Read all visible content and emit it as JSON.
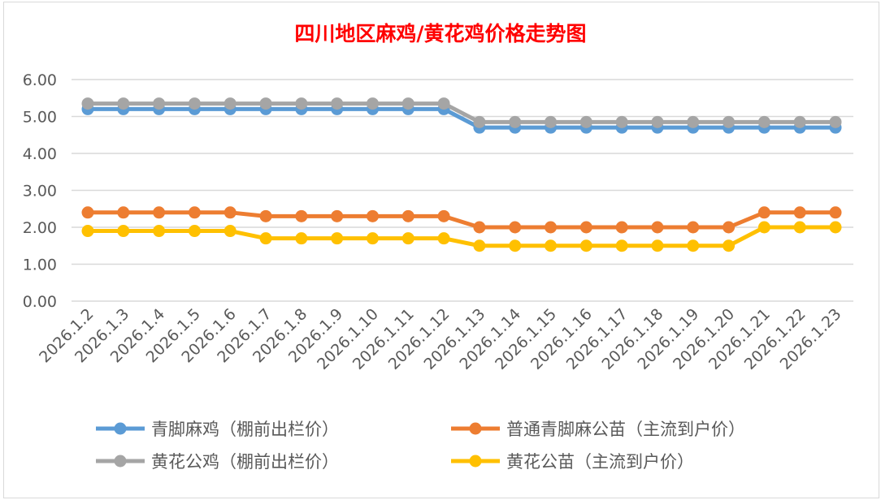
{
  "chart_data": {
    "type": "line",
    "title": "四川地区麻鸡/黄花鸡价格走势图",
    "xlabel": "",
    "ylabel": "",
    "ylim": [
      0,
      6
    ],
    "yticks": [
      "0.00",
      "1.00",
      "2.00",
      "3.00",
      "4.00",
      "5.00",
      "6.00"
    ],
    "grid": true,
    "legend_position": "bottom",
    "categories": [
      "2026.1.2",
      "2026.1.3",
      "2026.1.4",
      "2026.1.5",
      "2026.1.6",
      "2026.1.7",
      "2026.1.8",
      "2026.1.9",
      "2026.1.10",
      "2026.1.11",
      "2026.1.12",
      "2026.1.13",
      "2026.1.14",
      "2026.1.15",
      "2026.1.16",
      "2026.1.17",
      "2026.1.18",
      "2026.1.19",
      "2026.1.20",
      "2026.1.21",
      "2026.1.22",
      "2026.1.23"
    ],
    "series": [
      {
        "name": "青脚麻鸡（棚前出栏价）",
        "color": "#5b9bd5",
        "values": [
          5.2,
          5.2,
          5.2,
          5.2,
          5.2,
          5.2,
          5.2,
          5.2,
          5.2,
          5.2,
          5.2,
          4.7,
          4.7,
          4.7,
          4.7,
          4.7,
          4.7,
          4.7,
          4.7,
          4.7,
          4.7,
          4.7
        ]
      },
      {
        "name": "普通青脚麻公苗（主流到户价）",
        "color": "#ed7d31",
        "values": [
          2.4,
          2.4,
          2.4,
          2.4,
          2.4,
          2.3,
          2.3,
          2.3,
          2.3,
          2.3,
          2.3,
          2.0,
          2.0,
          2.0,
          2.0,
          2.0,
          2.0,
          2.0,
          2.0,
          2.4,
          2.4,
          2.4
        ]
      },
      {
        "name": "黄花公鸡（棚前出栏价）",
        "color": "#a5a5a5",
        "values": [
          5.35,
          5.35,
          5.35,
          5.35,
          5.35,
          5.35,
          5.35,
          5.35,
          5.35,
          5.35,
          5.35,
          4.85,
          4.85,
          4.85,
          4.85,
          4.85,
          4.85,
          4.85,
          4.85,
          4.85,
          4.85,
          4.85
        ]
      },
      {
        "name": "黄花公苗（主流到户价）",
        "color": "#ffc000",
        "values": [
          1.9,
          1.9,
          1.9,
          1.9,
          1.9,
          1.7,
          1.7,
          1.7,
          1.7,
          1.7,
          1.7,
          1.5,
          1.5,
          1.5,
          1.5,
          1.5,
          1.5,
          1.5,
          1.5,
          2.0,
          2.0,
          2.0
        ]
      }
    ]
  }
}
